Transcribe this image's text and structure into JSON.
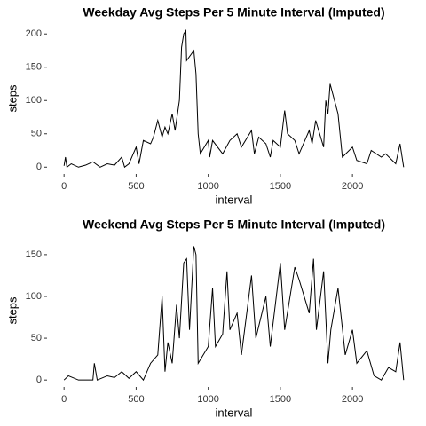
{
  "chart_data": [
    {
      "type": "line",
      "title": "Weekday Avg Steps Per 5 Minute Interval (Imputed)",
      "xlabel": "interval",
      "ylabel": "steps",
      "color": "#000000",
      "x": [
        0,
        10,
        20,
        50,
        100,
        150,
        200,
        250,
        300,
        350,
        400,
        420,
        450,
        500,
        520,
        550,
        600,
        620,
        650,
        680,
        700,
        720,
        750,
        770,
        800,
        815,
        830,
        845,
        850,
        900,
        915,
        930,
        945,
        1000,
        1010,
        1030,
        1100,
        1150,
        1200,
        1230,
        1300,
        1320,
        1350,
        1400,
        1430,
        1450,
        1500,
        1530,
        1550,
        1600,
        1630,
        1700,
        1720,
        1745,
        1800,
        1815,
        1830,
        1845,
        1900,
        1930,
        2000,
        2030,
        2100,
        2130,
        2200,
        2230,
        2300,
        2330,
        2355
      ],
      "values": [
        2,
        15,
        0,
        5,
        0,
        3,
        8,
        0,
        5,
        3,
        15,
        0,
        5,
        30,
        5,
        40,
        35,
        45,
        70,
        45,
        60,
        50,
        80,
        55,
        100,
        180,
        200,
        205,
        160,
        175,
        140,
        50,
        20,
        40,
        15,
        40,
        20,
        40,
        50,
        30,
        55,
        20,
        45,
        35,
        15,
        40,
        30,
        85,
        50,
        40,
        20,
        55,
        35,
        70,
        30,
        100,
        80,
        125,
        80,
        15,
        30,
        10,
        5,
        25,
        15,
        20,
        5,
        35,
        0
      ],
      "xlim": [
        -118,
        2473
      ],
      "ylim": [
        -10.3,
        216.3
      ],
      "xticks": [
        0,
        500,
        1000,
        1500,
        2000
      ],
      "yticks": [
        0,
        50,
        100,
        150,
        200
      ],
      "grid": false
    },
    {
      "type": "line",
      "title": "Weekend Avg Steps Per 5 Minute Interval (Imputed)",
      "xlabel": "interval",
      "ylabel": "steps",
      "color": "#000000",
      "x": [
        0,
        30,
        100,
        200,
        210,
        230,
        300,
        350,
        400,
        450,
        500,
        550,
        600,
        650,
        680,
        700,
        720,
        750,
        780,
        800,
        830,
        850,
        870,
        900,
        915,
        930,
        1000,
        1030,
        1050,
        1100,
        1130,
        1150,
        1200,
        1230,
        1300,
        1330,
        1400,
        1430,
        1500,
        1530,
        1600,
        1630,
        1700,
        1730,
        1750,
        1800,
        1830,
        1850,
        1900,
        1950,
        2000,
        2030,
        2100,
        2150,
        2200,
        2250,
        2300,
        2330,
        2355
      ],
      "values": [
        0,
        5,
        0,
        0,
        20,
        0,
        5,
        3,
        10,
        2,
        10,
        0,
        20,
        30,
        100,
        10,
        45,
        20,
        90,
        50,
        140,
        145,
        60,
        160,
        150,
        20,
        40,
        110,
        40,
        55,
        130,
        60,
        80,
        30,
        125,
        50,
        100,
        40,
        140,
        60,
        135,
        120,
        80,
        145,
        60,
        130,
        20,
        60,
        110,
        30,
        60,
        20,
        35,
        5,
        0,
        15,
        10,
        45,
        0
      ],
      "xlim": [
        -118,
        2473
      ],
      "ylim": [
        -8.3,
        174.3
      ],
      "xticks": [
        0,
        500,
        1000,
        1500,
        2000
      ],
      "yticks": [
        0,
        50,
        100,
        150
      ],
      "grid": false
    }
  ]
}
